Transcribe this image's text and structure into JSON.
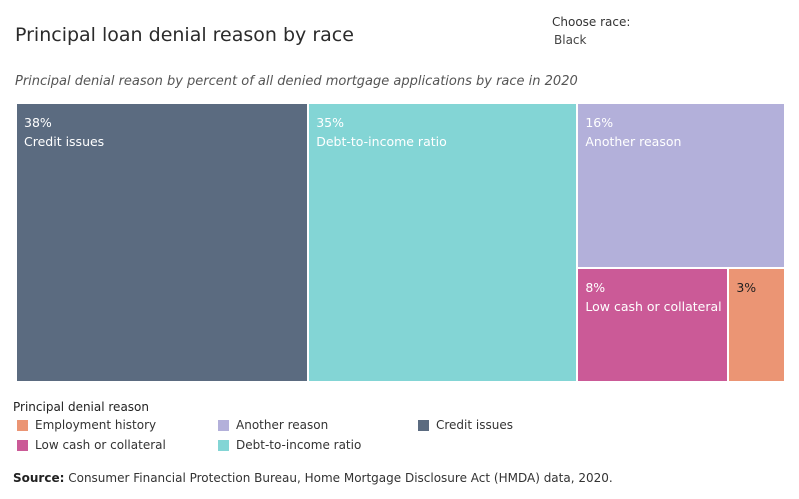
{
  "header": {
    "title": "Principal loan denial reason by race",
    "filter_label": "Choose race:",
    "filter_value": "Black"
  },
  "subtitle": "Principal denial reason by percent of all denied mortgage applications by race in 2020",
  "chart_data": {
    "type": "treemap",
    "title": "Principal loan denial reason by race",
    "subtitle": "Principal denial reason by percent of all denied mortgage applications by race in 2020",
    "unit": "%",
    "tiles": [
      {
        "pct": "38%",
        "label": "Credit issues",
        "value": 38,
        "color": "#5b6b80"
      },
      {
        "pct": "35%",
        "label": "Debt-to-income ratio",
        "value": 35,
        "color": "#83d5d5"
      },
      {
        "pct": "16%",
        "label": "Another reason",
        "value": 16,
        "color": "#b3b0da"
      },
      {
        "pct": "8%",
        "label": "Low cash or collateral",
        "value": 8,
        "color": "#cb5a97"
      },
      {
        "pct": "3%",
        "label": "",
        "value": 3,
        "color": "#eb9574"
      }
    ],
    "legend": {
      "title": "Principal denial reason",
      "placement": "bottom",
      "items": [
        {
          "label": "Employment history",
          "color": "#eb9574"
        },
        {
          "label": "Low cash or collateral",
          "color": "#cb5a97"
        },
        {
          "label": "Another reason",
          "color": "#b3b0da"
        },
        {
          "label": "Debt-to-income ratio",
          "color": "#83d5d5"
        },
        {
          "label": "Credit issues",
          "color": "#5b6b80"
        }
      ]
    }
  },
  "source": {
    "label": "Source:",
    "text": " Consumer Financial Protection Bureau, Home Mortgage Disclosure Act (HMDA) data, 2020."
  }
}
